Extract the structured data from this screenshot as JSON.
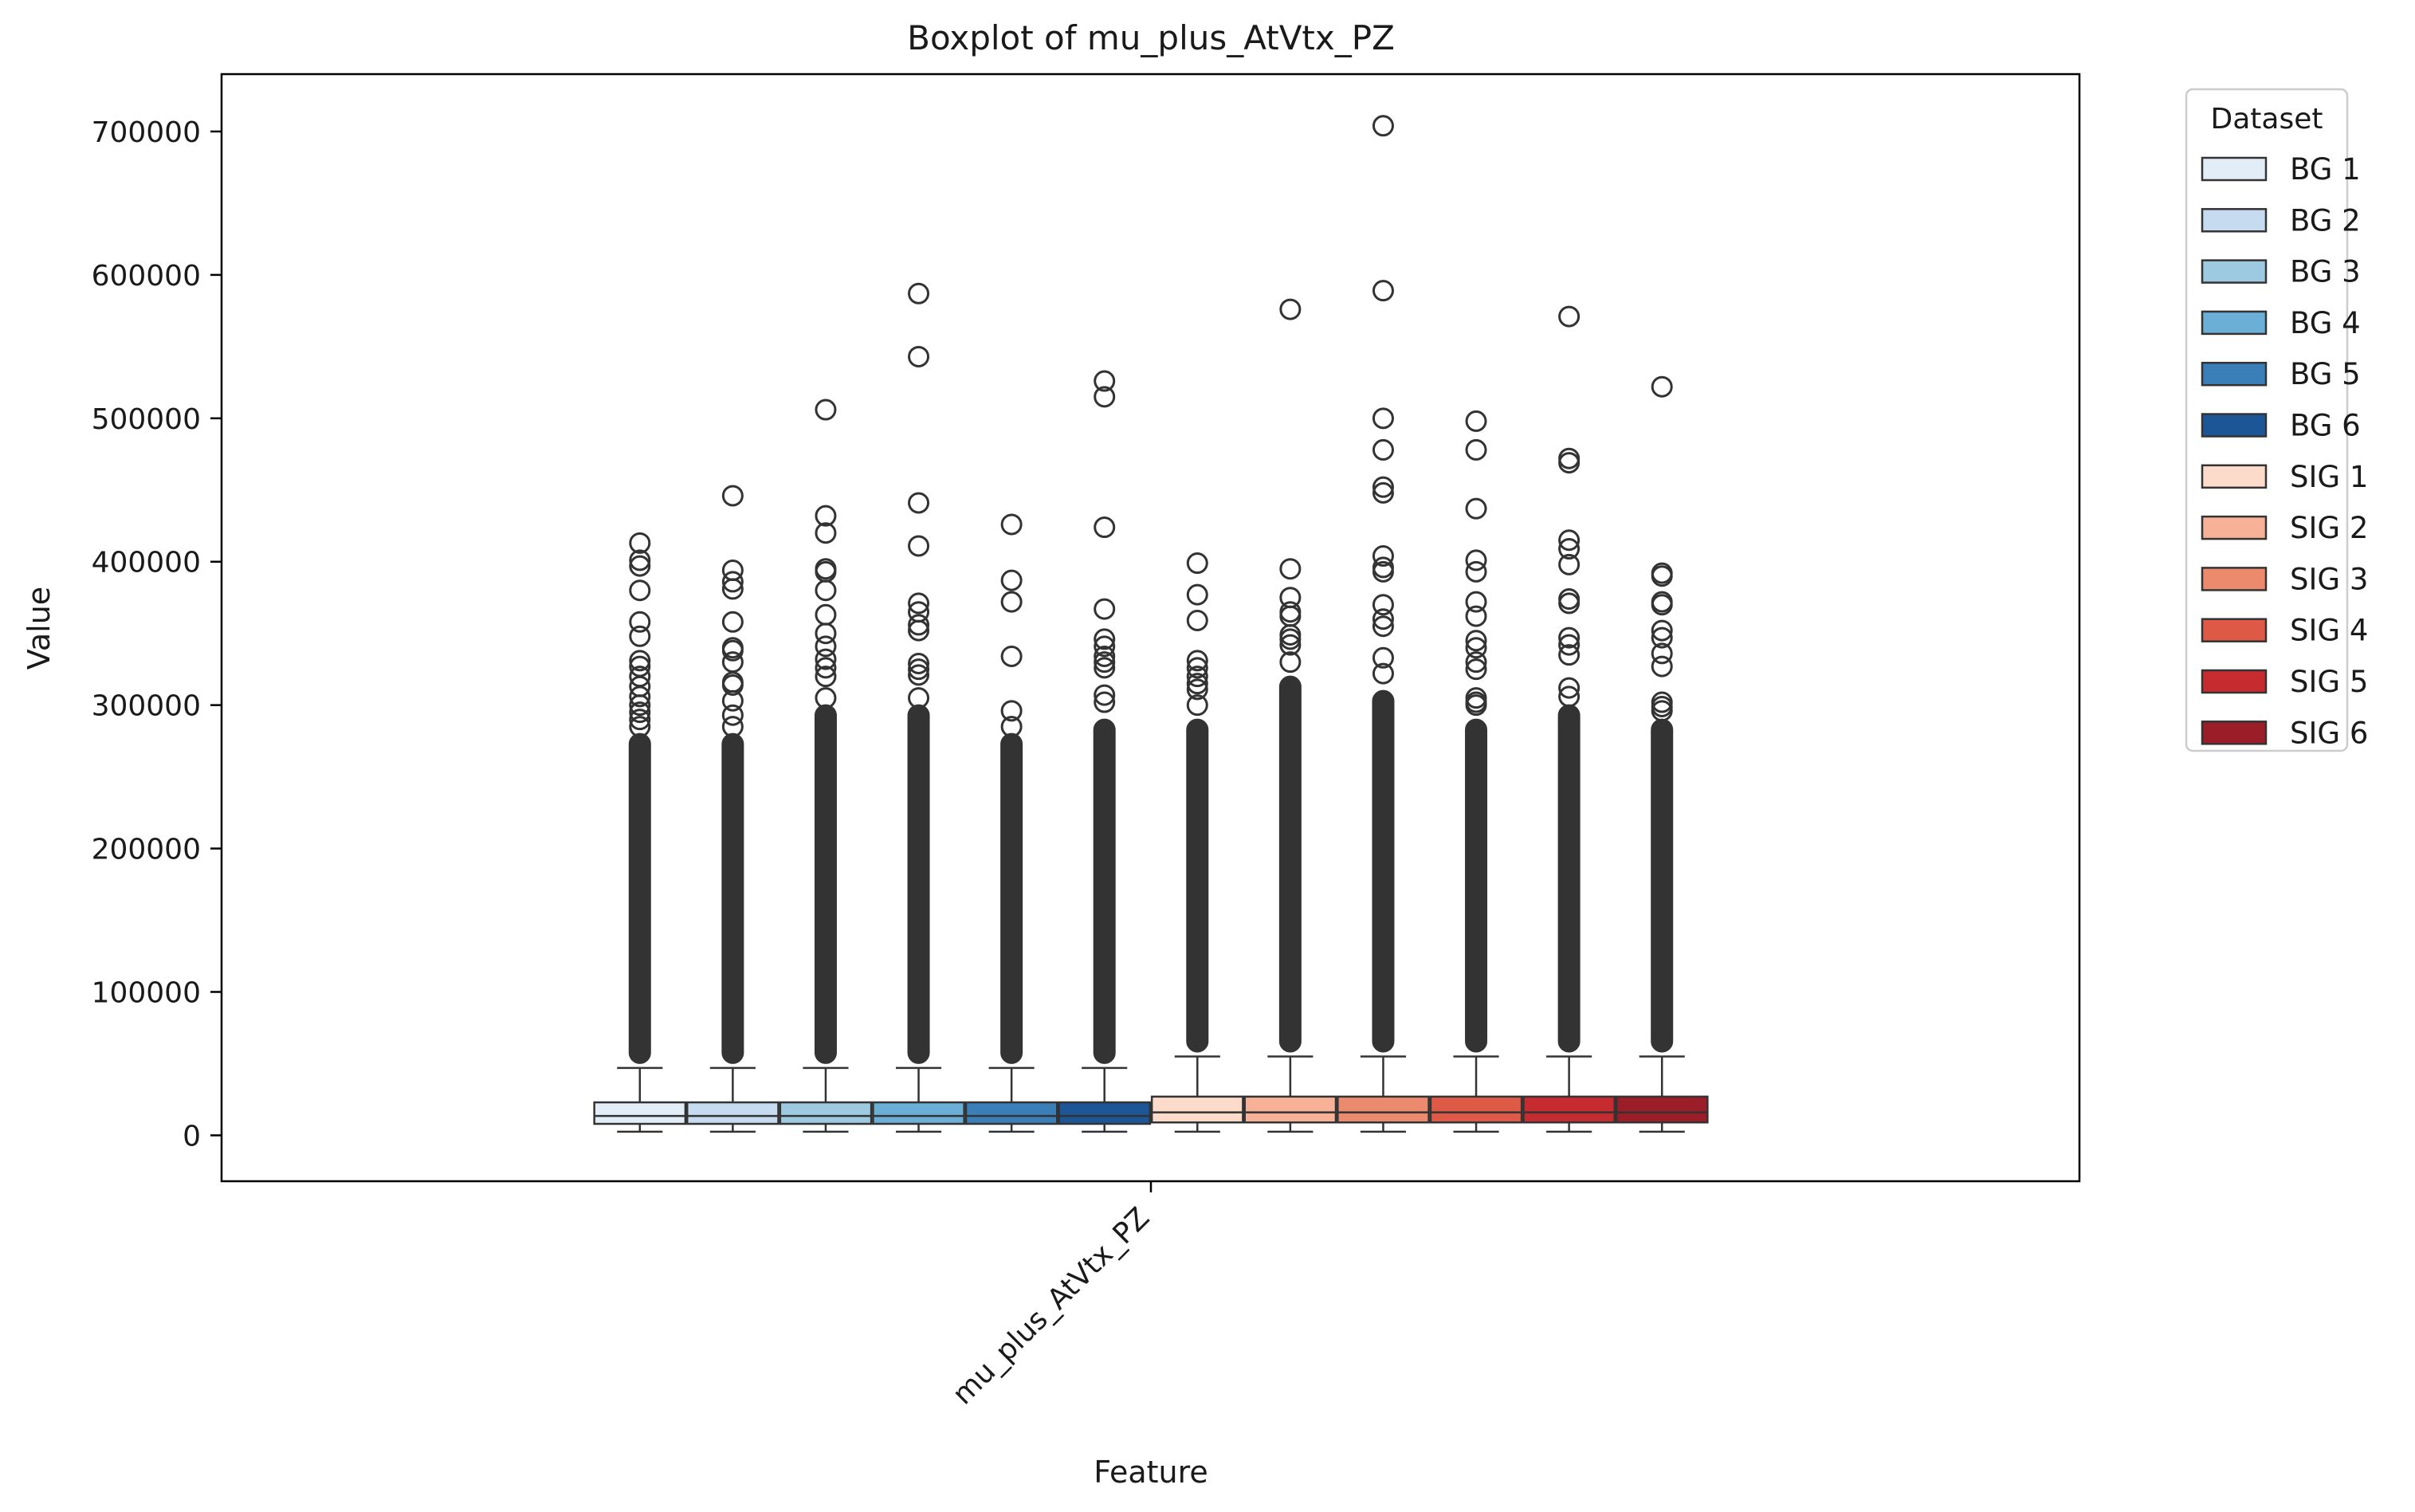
{
  "chart_data": {
    "type": "box",
    "title": "Boxplot of mu_plus_AtVtx_PZ",
    "xlabel": "Feature",
    "ylabel": "Value",
    "categories": [
      "mu_plus_AtVtx_PZ"
    ],
    "ylim": [
      -32000,
      740000
    ],
    "yticks": [
      0,
      100000,
      200000,
      300000,
      400000,
      500000,
      600000,
      700000
    ],
    "grid": false,
    "legend": {
      "title": "Dataset",
      "placement": "outside-top-right"
    },
    "series": [
      {
        "name": "BG 1",
        "color": "#e3edf8",
        "whisker_low": 2500,
        "q1": 8000,
        "median": 13500,
        "q3": 23000,
        "whisker_high": 47000,
        "dense_fliers_to": 280000,
        "outliers": [
          413000,
          401000,
          397000,
          380000,
          358000,
          348000,
          331000,
          327000,
          320000,
          313000,
          306000,
          300000,
          295000,
          290000,
          285000
        ]
      },
      {
        "name": "BG 2",
        "color": "#c6dbef",
        "whisker_low": 2500,
        "q1": 8000,
        "median": 13500,
        "q3": 23000,
        "whisker_high": 47000,
        "dense_fliers_to": 280000,
        "outliers": [
          446000,
          394000,
          386000,
          381000,
          358000,
          340000,
          338000,
          330000,
          316000,
          314000,
          303000,
          293000,
          285000
        ]
      },
      {
        "name": "BG 3",
        "color": "#9ecae1",
        "whisker_low": 2500,
        "q1": 8000,
        "median": 13500,
        "q3": 23000,
        "whisker_high": 47000,
        "dense_fliers_to": 300000,
        "outliers": [
          506000,
          432000,
          420000,
          395000,
          393000,
          380000,
          363000,
          350000,
          341000,
          332000,
          326000,
          320000,
          305000
        ]
      },
      {
        "name": "BG 4",
        "color": "#6baed6",
        "whisker_low": 2500,
        "q1": 8000,
        "median": 13500,
        "q3": 23000,
        "whisker_high": 47000,
        "dense_fliers_to": 300000,
        "outliers": [
          587000,
          543000,
          441000,
          411000,
          371000,
          365000,
          356000,
          352000,
          329000,
          325000,
          321000,
          305000
        ]
      },
      {
        "name": "BG 5",
        "color": "#3b7fb9",
        "whisker_low": 2500,
        "q1": 8000,
        "median": 13500,
        "q3": 23000,
        "whisker_high": 47000,
        "dense_fliers_to": 280000,
        "outliers": [
          426000,
          387000,
          372000,
          334000,
          296000,
          285000
        ]
      },
      {
        "name": "BG 6",
        "color": "#1c5697",
        "whisker_low": 2500,
        "q1": 8000,
        "median": 13500,
        "q3": 23000,
        "whisker_high": 47000,
        "dense_fliers_to": 290000,
        "outliers": [
          526000,
          515000,
          424000,
          367000,
          346000,
          341000,
          334000,
          330000,
          326000,
          307000,
          302000
        ]
      },
      {
        "name": "SIG 1",
        "color": "#fcdbcb",
        "whisker_low": 2500,
        "q1": 9000,
        "median": 16000,
        "q3": 27000,
        "whisker_high": 55000,
        "dense_fliers_to": 290000,
        "outliers": [
          399000,
          377000,
          359000,
          331000,
          326000,
          320000,
          315000,
          311000,
          300000
        ]
      },
      {
        "name": "SIG 2",
        "color": "#f6b197",
        "whisker_low": 2500,
        "q1": 9000,
        "median": 16000,
        "q3": 27000,
        "whisker_high": 55000,
        "dense_fliers_to": 320000,
        "outliers": [
          576000,
          395000,
          375000,
          365000,
          362000,
          349000,
          346000,
          342000,
          330000
        ]
      },
      {
        "name": "SIG 3",
        "color": "#ec8a6e",
        "whisker_low": 2500,
        "q1": 9000,
        "median": 16000,
        "q3": 27000,
        "whisker_high": 55000,
        "dense_fliers_to": 310000,
        "outliers": [
          704000,
          589000,
          500000,
          478000,
          452000,
          448000,
          404000,
          396000,
          393000,
          370000,
          360000,
          355000,
          333000,
          322000
        ]
      },
      {
        "name": "SIG 4",
        "color": "#de5a47",
        "whisker_low": 2500,
        "q1": 9000,
        "median": 16000,
        "q3": 27000,
        "whisker_high": 55000,
        "dense_fliers_to": 290000,
        "outliers": [
          498000,
          478000,
          437000,
          401000,
          393000,
          372000,
          362000,
          345000,
          340000,
          330000,
          325000,
          305000,
          302000,
          300000
        ]
      },
      {
        "name": "SIG 5",
        "color": "#c62c2f",
        "whisker_low": 2500,
        "q1": 9000,
        "median": 16000,
        "q3": 27000,
        "whisker_high": 55000,
        "dense_fliers_to": 300000,
        "outliers": [
          571000,
          472000,
          469000,
          415000,
          409000,
          398000,
          374000,
          371000,
          347000,
          342000,
          335000,
          312000,
          306000
        ]
      },
      {
        "name": "SIG 6",
        "color": "#9a1d28",
        "whisker_low": 2500,
        "q1": 9000,
        "median": 16000,
        "q3": 27000,
        "whisker_high": 55000,
        "dense_fliers_to": 290000,
        "outliers": [
          522000,
          392000,
          390000,
          372000,
          370000,
          352000,
          347000,
          336000,
          327000,
          302000,
          299000,
          296000
        ]
      }
    ]
  }
}
